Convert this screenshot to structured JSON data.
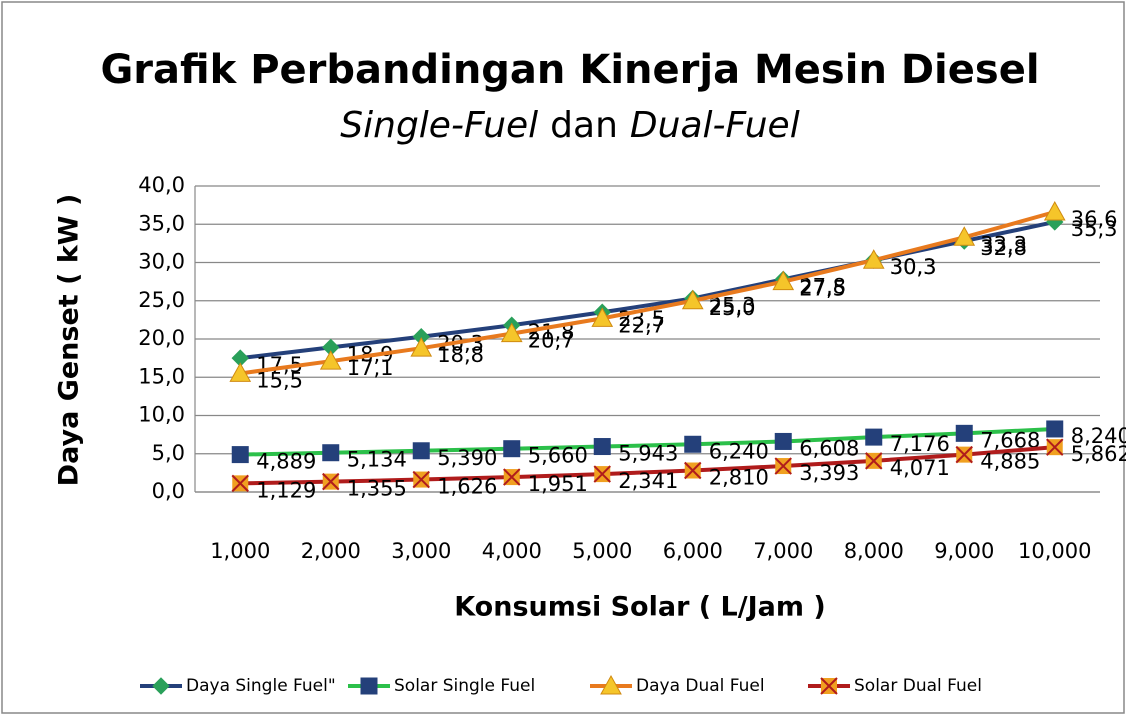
{
  "chart_data": {
    "type": "line",
    "title": "Grafik Perbandingan Kinerja Mesin Diesel",
    "subtitle": [
      "Single-Fuel",
      "dan",
      "Dual-Fuel"
    ],
    "x_label": "Konsumsi Solar ( L/Jam )",
    "y_label": "Daya Genset ( kW )",
    "categories": [
      "1,000",
      "2,000",
      "3,000",
      "4,000",
      "5,000",
      "6,000",
      "7,000",
      "8,000",
      "9,000",
      "10,000"
    ],
    "ylim": [
      0,
      40
    ],
    "yticks": [
      {
        "value": 0,
        "label": "0,0"
      },
      {
        "value": 5,
        "label": "5,0"
      },
      {
        "value": 10,
        "label": "10,0"
      },
      {
        "value": 15,
        "label": "15,0"
      },
      {
        "value": 20,
        "label": "20,0"
      },
      {
        "value": 25,
        "label": "25,0"
      },
      {
        "value": 30,
        "label": "30,0"
      },
      {
        "value": 35,
        "label": "35,0"
      },
      {
        "value": 40,
        "label": "40,0"
      }
    ],
    "grid": true,
    "legend": "bottom",
    "series": [
      {
        "name": "Daya Single Fuel\"",
        "color": "#24407a",
        "marker_color": "#2aa05a",
        "marker": "diamond",
        "values": [
          17.5,
          18.9,
          20.3,
          21.8,
          23.5,
          25.3,
          27.8,
          30.3,
          32.8,
          35.3
        ],
        "value_labels": [
          "17,5",
          "18,9",
          "20,3",
          "21,8",
          "23,5",
          "25,3",
          "27,8",
          "30,3",
          "32,8",
          "35,3"
        ]
      },
      {
        "name": "Solar Single Fuel",
        "color": "#2cc04a",
        "marker_color": "#24407a",
        "marker": "square",
        "values": [
          4.889,
          5.134,
          5.39,
          5.66,
          5.943,
          6.24,
          6.608,
          7.176,
          7.668,
          8.24
        ],
        "value_labels": [
          "4,889",
          "5,134",
          "5,390",
          "5,660",
          "5,943",
          "6,240",
          "6,608",
          "7,176",
          "7,668",
          "8,240"
        ]
      },
      {
        "name": "Daya Dual Fuel",
        "color": "#e87a1e",
        "marker_color": "#f5c52a",
        "marker": "triangle",
        "values": [
          15.5,
          17.1,
          18.8,
          20.7,
          22.7,
          25.0,
          27.5,
          30.3,
          33.3,
          36.6
        ],
        "value_labels": [
          "15,5",
          "17,1",
          "18,8",
          "20,7",
          "22,7",
          "25,0",
          "27,5",
          "30,3",
          "33,3",
          "36,6"
        ]
      },
      {
        "name": "Solar Dual Fuel",
        "color": "#b01c1c",
        "marker_color": "#f0a020",
        "marker": "x",
        "values": [
          1.129,
          1.355,
          1.626,
          1.951,
          2.341,
          2.81,
          3.393,
          4.071,
          4.885,
          5.862
        ],
        "value_labels": [
          "1,129",
          "1,355",
          "1,626",
          "1,951",
          "2,341",
          "2,810",
          "3,393",
          "4,071",
          "4,885",
          "5,862"
        ]
      }
    ]
  }
}
